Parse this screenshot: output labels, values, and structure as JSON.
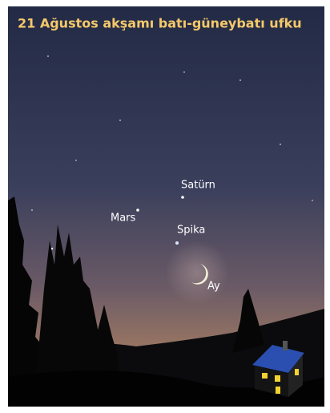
{
  "title": "21 Ağustos akşamı batı-güneybatı ufku",
  "objects": [
    {
      "label": "Satürn"
    },
    {
      "label": "Mars"
    },
    {
      "label": "Spika"
    },
    {
      "label": "Ay"
    }
  ]
}
